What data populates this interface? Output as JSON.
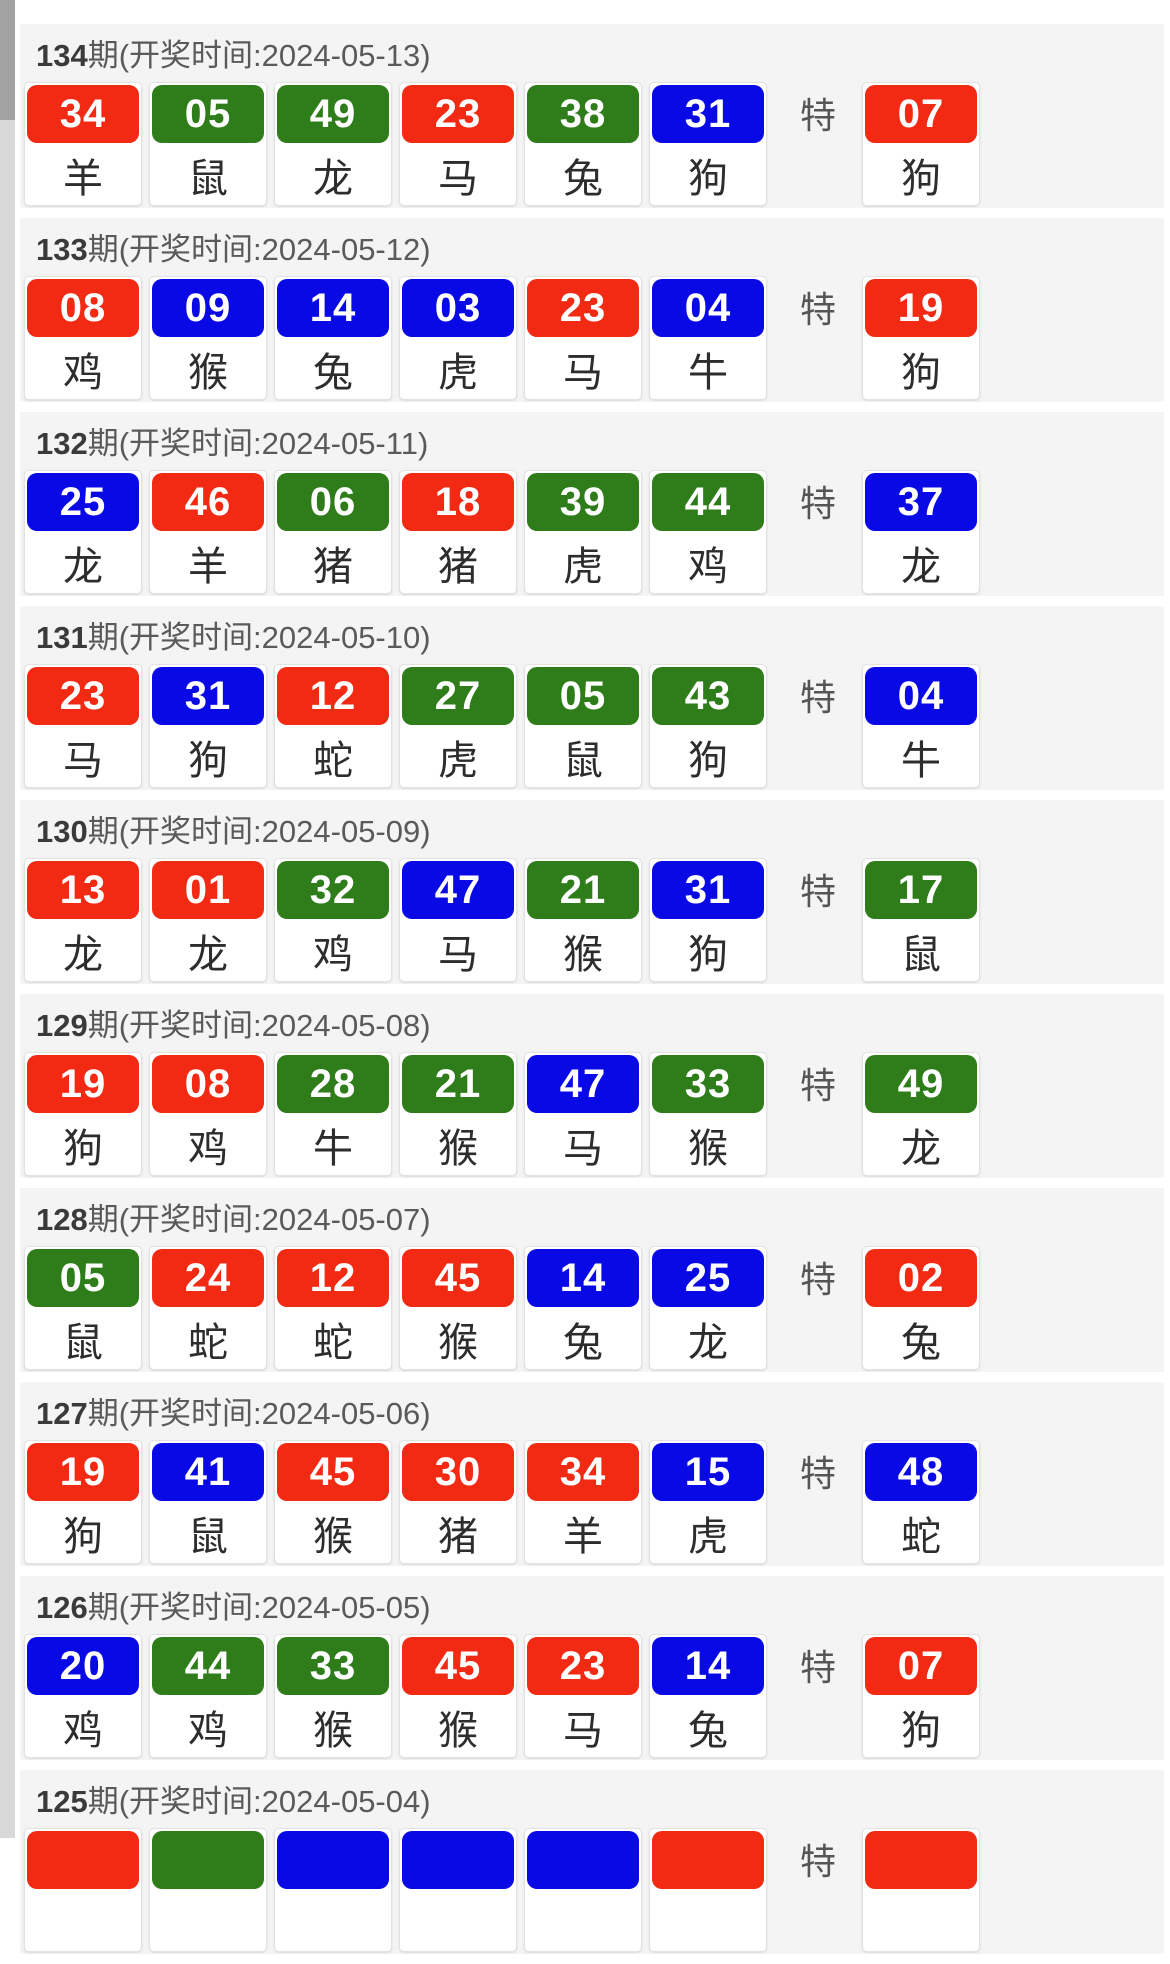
{
  "page": {
    "special_label": "特"
  },
  "colors": {
    "red": "#f22a13",
    "green": "#2e7d1a",
    "blue": "#0909e6"
  },
  "draws": [
    {
      "period": "134",
      "header_suffix": "期(开奖时间:2024-05-13)",
      "numbers": [
        {
          "num": "34",
          "color": "red",
          "zodiac": "羊"
        },
        {
          "num": "05",
          "color": "green",
          "zodiac": "鼠"
        },
        {
          "num": "49",
          "color": "green",
          "zodiac": "龙"
        },
        {
          "num": "23",
          "color": "red",
          "zodiac": "马"
        },
        {
          "num": "38",
          "color": "green",
          "zodiac": "兔"
        },
        {
          "num": "31",
          "color": "blue",
          "zodiac": "狗"
        }
      ],
      "special": {
        "num": "07",
        "color": "red",
        "zodiac": "狗"
      }
    },
    {
      "period": "133",
      "header_suffix": "期(开奖时间:2024-05-12)",
      "numbers": [
        {
          "num": "08",
          "color": "red",
          "zodiac": "鸡"
        },
        {
          "num": "09",
          "color": "blue",
          "zodiac": "猴"
        },
        {
          "num": "14",
          "color": "blue",
          "zodiac": "兔"
        },
        {
          "num": "03",
          "color": "blue",
          "zodiac": "虎"
        },
        {
          "num": "23",
          "color": "red",
          "zodiac": "马"
        },
        {
          "num": "04",
          "color": "blue",
          "zodiac": "牛"
        }
      ],
      "special": {
        "num": "19",
        "color": "red",
        "zodiac": "狗"
      }
    },
    {
      "period": "132",
      "header_suffix": "期(开奖时间:2024-05-11)",
      "numbers": [
        {
          "num": "25",
          "color": "blue",
          "zodiac": "龙"
        },
        {
          "num": "46",
          "color": "red",
          "zodiac": "羊"
        },
        {
          "num": "06",
          "color": "green",
          "zodiac": "猪"
        },
        {
          "num": "18",
          "color": "red",
          "zodiac": "猪"
        },
        {
          "num": "39",
          "color": "green",
          "zodiac": "虎"
        },
        {
          "num": "44",
          "color": "green",
          "zodiac": "鸡"
        }
      ],
      "special": {
        "num": "37",
        "color": "blue",
        "zodiac": "龙"
      }
    },
    {
      "period": "131",
      "header_suffix": "期(开奖时间:2024-05-10)",
      "numbers": [
        {
          "num": "23",
          "color": "red",
          "zodiac": "马"
        },
        {
          "num": "31",
          "color": "blue",
          "zodiac": "狗"
        },
        {
          "num": "12",
          "color": "red",
          "zodiac": "蛇"
        },
        {
          "num": "27",
          "color": "green",
          "zodiac": "虎"
        },
        {
          "num": "05",
          "color": "green",
          "zodiac": "鼠"
        },
        {
          "num": "43",
          "color": "green",
          "zodiac": "狗"
        }
      ],
      "special": {
        "num": "04",
        "color": "blue",
        "zodiac": "牛"
      }
    },
    {
      "period": "130",
      "header_suffix": "期(开奖时间:2024-05-09)",
      "numbers": [
        {
          "num": "13",
          "color": "red",
          "zodiac": "龙"
        },
        {
          "num": "01",
          "color": "red",
          "zodiac": "龙"
        },
        {
          "num": "32",
          "color": "green",
          "zodiac": "鸡"
        },
        {
          "num": "47",
          "color": "blue",
          "zodiac": "马"
        },
        {
          "num": "21",
          "color": "green",
          "zodiac": "猴"
        },
        {
          "num": "31",
          "color": "blue",
          "zodiac": "狗"
        }
      ],
      "special": {
        "num": "17",
        "color": "green",
        "zodiac": "鼠"
      }
    },
    {
      "period": "129",
      "header_suffix": "期(开奖时间:2024-05-08)",
      "numbers": [
        {
          "num": "19",
          "color": "red",
          "zodiac": "狗"
        },
        {
          "num": "08",
          "color": "red",
          "zodiac": "鸡"
        },
        {
          "num": "28",
          "color": "green",
          "zodiac": "牛"
        },
        {
          "num": "21",
          "color": "green",
          "zodiac": "猴"
        },
        {
          "num": "47",
          "color": "blue",
          "zodiac": "马"
        },
        {
          "num": "33",
          "color": "green",
          "zodiac": "猴"
        }
      ],
      "special": {
        "num": "49",
        "color": "green",
        "zodiac": "龙"
      }
    },
    {
      "period": "128",
      "header_suffix": "期(开奖时间:2024-05-07)",
      "numbers": [
        {
          "num": "05",
          "color": "green",
          "zodiac": "鼠"
        },
        {
          "num": "24",
          "color": "red",
          "zodiac": "蛇"
        },
        {
          "num": "12",
          "color": "red",
          "zodiac": "蛇"
        },
        {
          "num": "45",
          "color": "red",
          "zodiac": "猴"
        },
        {
          "num": "14",
          "color": "blue",
          "zodiac": "兔"
        },
        {
          "num": "25",
          "color": "blue",
          "zodiac": "龙"
        }
      ],
      "special": {
        "num": "02",
        "color": "red",
        "zodiac": "兔"
      }
    },
    {
      "period": "127",
      "header_suffix": "期(开奖时间:2024-05-06)",
      "numbers": [
        {
          "num": "19",
          "color": "red",
          "zodiac": "狗"
        },
        {
          "num": "41",
          "color": "blue",
          "zodiac": "鼠"
        },
        {
          "num": "45",
          "color": "red",
          "zodiac": "猴"
        },
        {
          "num": "30",
          "color": "red",
          "zodiac": "猪"
        },
        {
          "num": "34",
          "color": "red",
          "zodiac": "羊"
        },
        {
          "num": "15",
          "color": "blue",
          "zodiac": "虎"
        }
      ],
      "special": {
        "num": "48",
        "color": "blue",
        "zodiac": "蛇"
      }
    },
    {
      "period": "126",
      "header_suffix": "期(开奖时间:2024-05-05)",
      "numbers": [
        {
          "num": "20",
          "color": "blue",
          "zodiac": "鸡"
        },
        {
          "num": "44",
          "color": "green",
          "zodiac": "鸡"
        },
        {
          "num": "33",
          "color": "green",
          "zodiac": "猴"
        },
        {
          "num": "45",
          "color": "red",
          "zodiac": "猴"
        },
        {
          "num": "23",
          "color": "red",
          "zodiac": "马"
        },
        {
          "num": "14",
          "color": "blue",
          "zodiac": "兔"
        }
      ],
      "special": {
        "num": "07",
        "color": "red",
        "zodiac": "狗"
      }
    },
    {
      "period": "125",
      "header_suffix": "期(开奖时间:2024-05-04)",
      "numbers": [
        {
          "num": "",
          "color": "red",
          "zodiac": ""
        },
        {
          "num": "",
          "color": "green",
          "zodiac": ""
        },
        {
          "num": "",
          "color": "blue",
          "zodiac": ""
        },
        {
          "num": "",
          "color": "blue",
          "zodiac": ""
        },
        {
          "num": "",
          "color": "blue",
          "zodiac": ""
        },
        {
          "num": "",
          "color": "red",
          "zodiac": ""
        }
      ],
      "special": {
        "num": "",
        "color": "red",
        "zodiac": ""
      }
    }
  ]
}
